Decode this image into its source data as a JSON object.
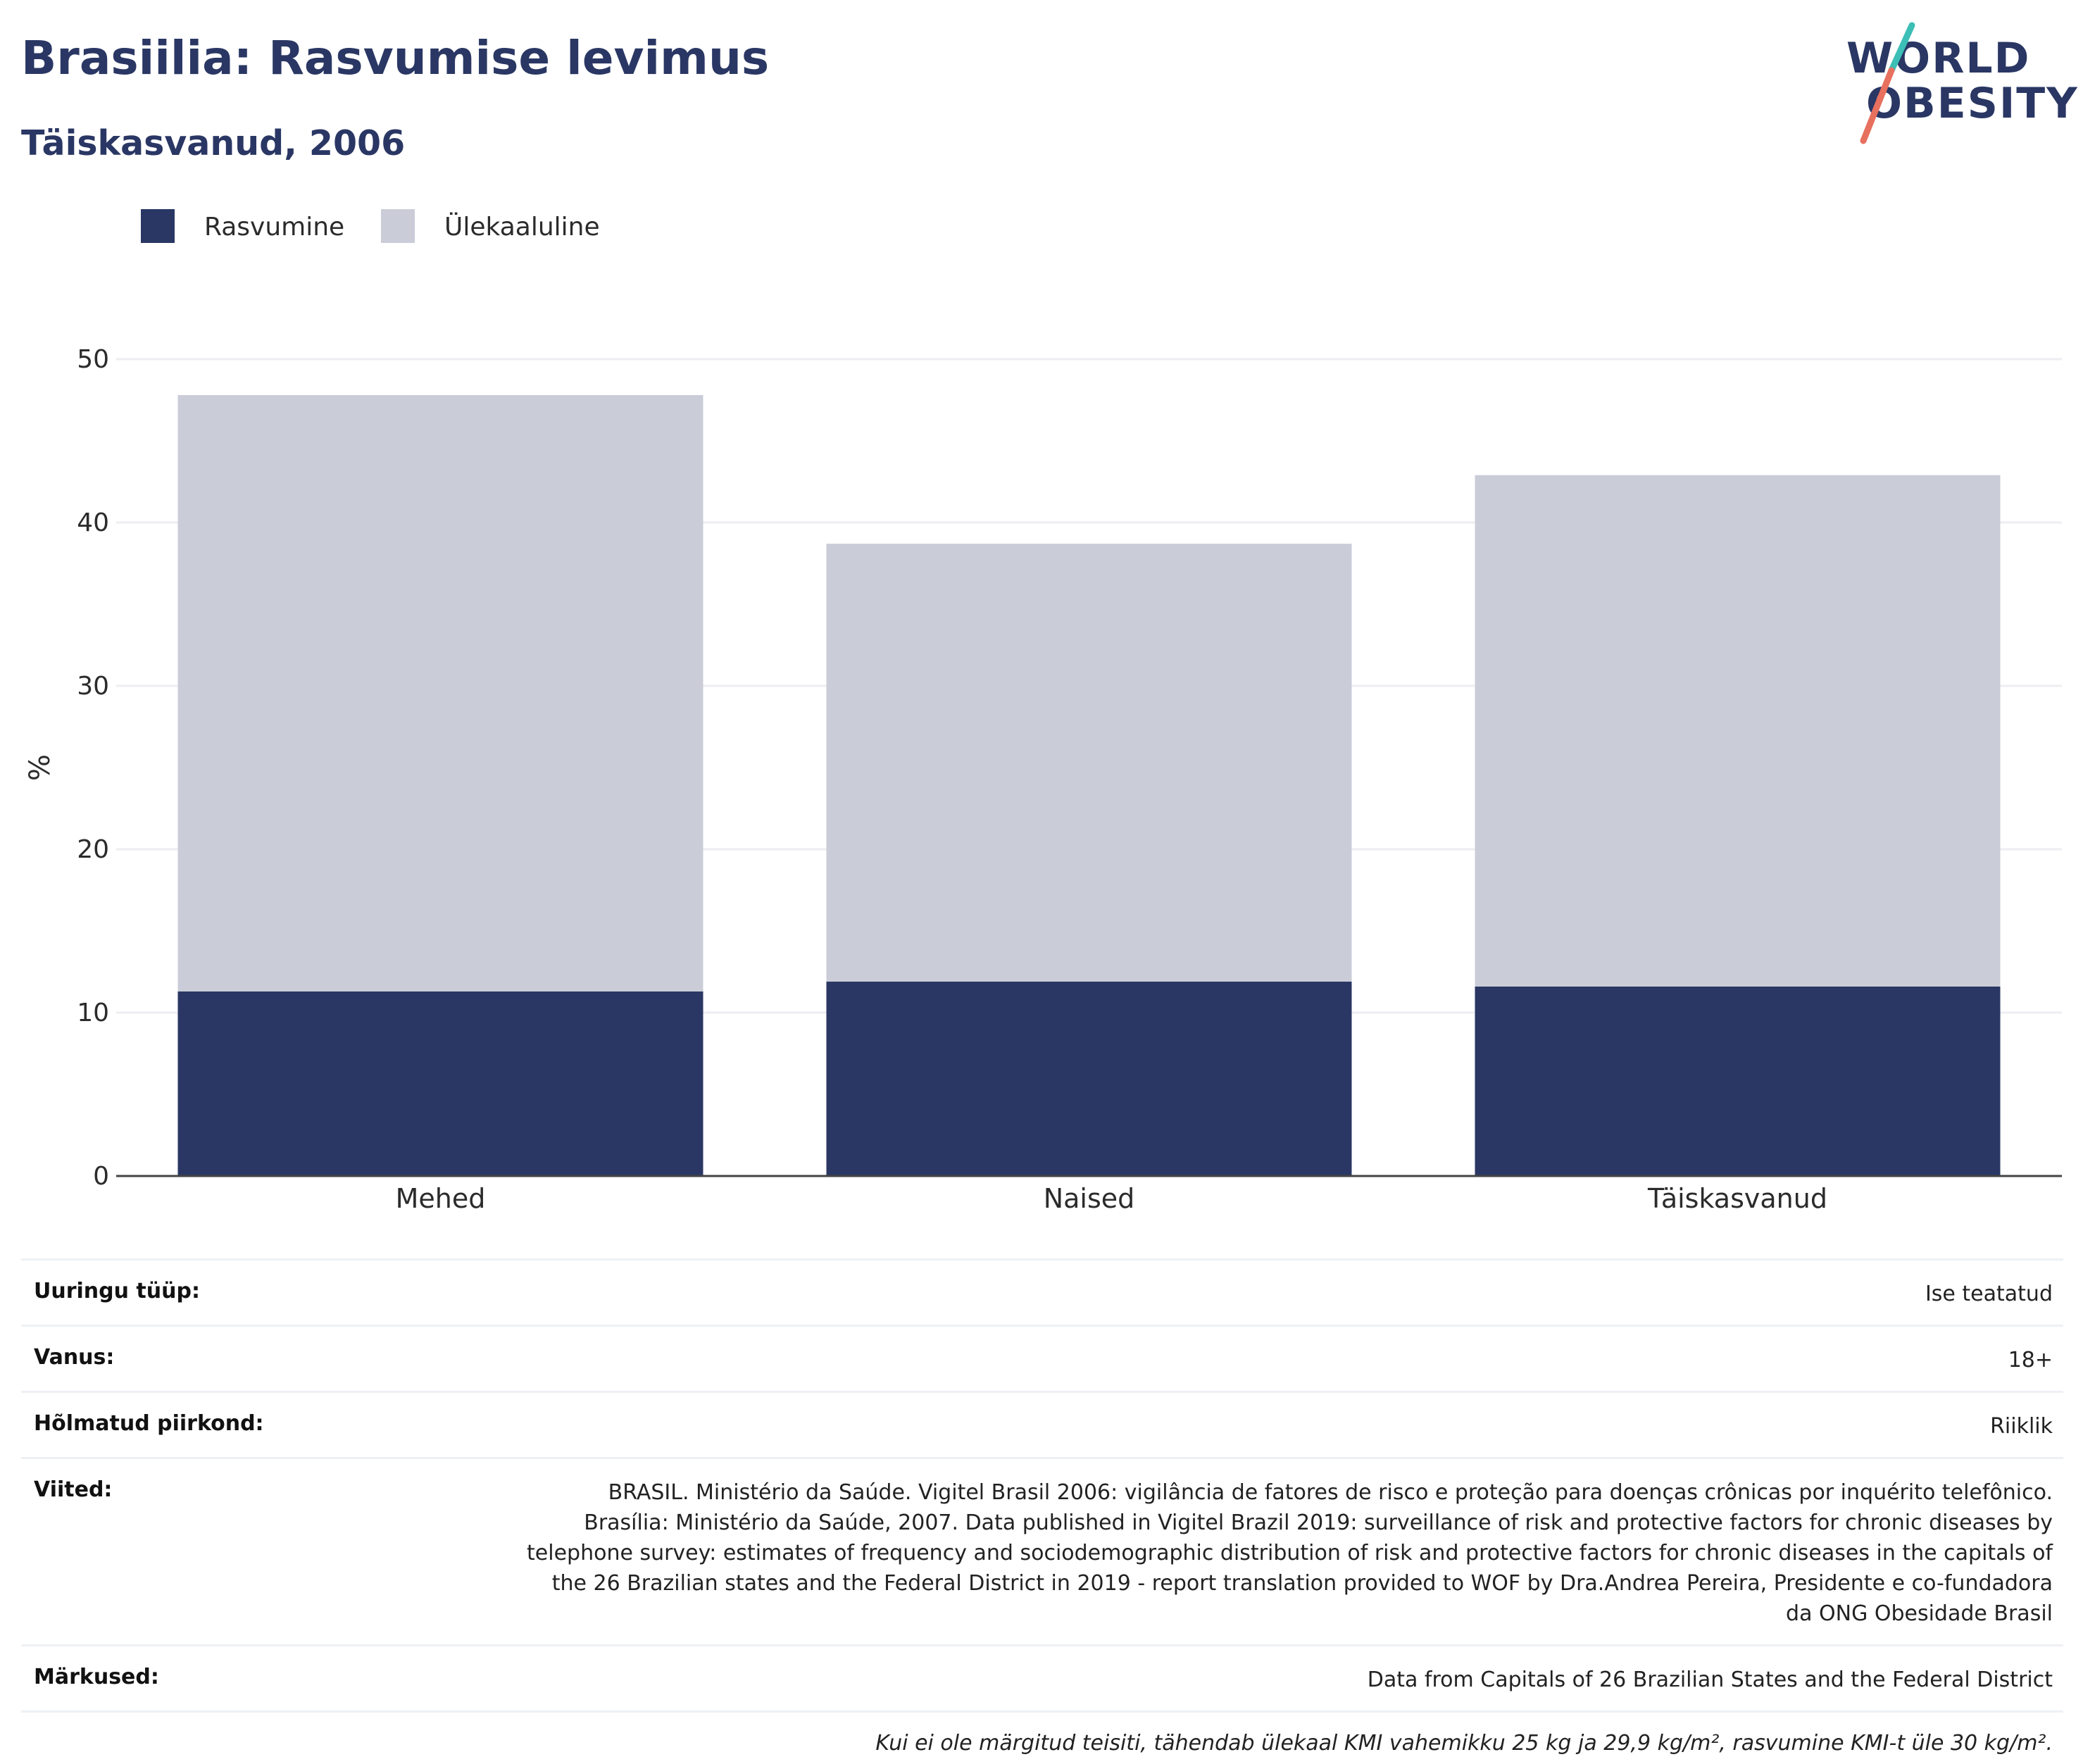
{
  "header": {
    "title": "Brasiilia: Rasvumise levimus",
    "subtitle": "Täiskasvanud, 2006"
  },
  "logo": {
    "line1": "WORLD",
    "line2": "OBESITY"
  },
  "legend": [
    {
      "label": "Rasvumine",
      "color": "#2a3764"
    },
    {
      "label": "Ülekaaluline",
      "color": "#cacdd8"
    }
  ],
  "chart_data": {
    "type": "bar",
    "stacked": true,
    "categories": [
      "Mehed",
      "Naised",
      "Täiskasvanud"
    ],
    "series": [
      {
        "name": "Rasvumine",
        "values": [
          11.3,
          11.9,
          11.6
        ],
        "color": "#2a3764"
      },
      {
        "name": "Ülekaaluline",
        "values": [
          36.5,
          26.8,
          31.3
        ],
        "color": "#cacdd8"
      }
    ],
    "ylabel": "%",
    "ylim": [
      0,
      50
    ],
    "yticks": [
      0,
      10,
      20,
      30,
      40,
      50
    ],
    "grid": true,
    "legend_position": "top-left"
  },
  "info": {
    "survey_type": {
      "label": "Uuringu tüüp:",
      "value": "Ise teatatud"
    },
    "age": {
      "label": "Vanus:",
      "value": "18+"
    },
    "region": {
      "label": "Hõlmatud piirkond:",
      "value": "Riiklik"
    },
    "references": {
      "label": "Viited:",
      "value": "BRASIL. Ministério da Saúde. Vigitel Brasil 2006: vigilância de fatores de risco e proteção para doenças crônicas por inquérito telefônico. Brasília: Ministério da Saúde, 2007. Data published in Vigitel Brazil 2019: surveillance of risk and protective factors for chronic diseases by telephone survey: estimates of frequency and sociodemographic distribution of risk and protective factors for chronic diseases in the capitals of the 26 Brazilian states and the Federal District in 2019 - report translation provided to WOF by Dra.Andrea Pereira, Presidente e co-fundadora da ONG Obesidade Brasil"
    },
    "notes": {
      "label": "Märkused:",
      "value": "Data from Capitals of 26 Brazilian States and the Federal District"
    },
    "footnote": "Kui ei ole märgitud teisiti, tähendab ülekaal KMI vahemikku 25 kg ja 29,9 kg/m², rasvumine KMI-t üle 30 kg/m²."
  }
}
